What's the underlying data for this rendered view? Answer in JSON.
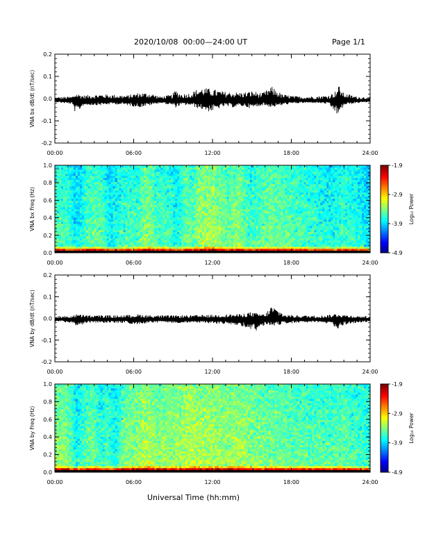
{
  "header": {
    "title": "2020/10/08  00:00—24:00 UT",
    "page": "Page 1/1"
  },
  "x_axis_title": "Universal Time (hh:mm)",
  "chart_data": [
    {
      "type": "line",
      "name": "bx-timeseries",
      "ylabel": "VNA bx dB/dt (nT/sec)",
      "xlim": [
        0,
        24
      ],
      "ylim": [
        -0.2,
        0.2
      ],
      "x_tick_labels": [
        "00:00",
        "06:00",
        "12:00",
        "18:00",
        "24:00"
      ],
      "y_tick_labels": [
        "0.2",
        "0.1",
        "0.0",
        "-0.1",
        "-0.2"
      ],
      "y_ticks": [
        0.2,
        0.1,
        0.0,
        -0.1,
        -0.2
      ],
      "baseline": -0.01,
      "envelope": {
        "hours": [
          0,
          1.3,
          1.6,
          2.2,
          3.5,
          4.5,
          5.5,
          6.4,
          7.3,
          8.0,
          8.9,
          9.2,
          9.6,
          10.3,
          10.9,
          11.3,
          11.8,
          12.3,
          12.9,
          13.5,
          14.3,
          15.0,
          15.8,
          16.5,
          17.3,
          18.2,
          19.0,
          20.0,
          20.8,
          21.3,
          21.6,
          22.0,
          23.0,
          24.0
        ],
        "upper": [
          0.007,
          0.01,
          0.025,
          0.015,
          0.02,
          0.018,
          0.015,
          0.028,
          0.025,
          0.01,
          0.018,
          0.04,
          0.022,
          0.025,
          0.045,
          0.05,
          0.045,
          0.04,
          0.032,
          0.03,
          0.028,
          0.035,
          0.025,
          0.055,
          0.02,
          0.012,
          0.01,
          0.012,
          0.015,
          0.03,
          0.06,
          0.025,
          0.01,
          0.007
        ],
        "lower": [
          -0.015,
          -0.025,
          -0.07,
          -0.03,
          -0.03,
          -0.025,
          -0.03,
          -0.04,
          -0.03,
          -0.02,
          -0.03,
          -0.04,
          -0.03,
          -0.03,
          -0.045,
          -0.05,
          -0.06,
          -0.05,
          -0.035,
          -0.04,
          -0.035,
          -0.045,
          -0.03,
          -0.04,
          -0.03,
          -0.022,
          -0.02,
          -0.02,
          -0.025,
          -0.06,
          -0.08,
          -0.03,
          -0.02,
          -0.015
        ]
      }
    },
    {
      "type": "heatmap",
      "name": "bx-spectrogram",
      "ylabel": "VNA bx Freq (Hz)",
      "xlim": [
        0,
        24
      ],
      "ylim": [
        0,
        1.0
      ],
      "x_tick_labels": [
        "00:00",
        "06:00",
        "12:00",
        "18:00",
        "24:00"
      ],
      "y_tick_labels": [
        "1.0",
        "0.8",
        "0.6",
        "0.4",
        "0.2",
        "0.0"
      ],
      "y_ticks": [
        1.0,
        0.8,
        0.6,
        0.4,
        0.2,
        0.0
      ],
      "colorbar": {
        "label": "Log₁₀ Power",
        "ticks": [
          "-1.9",
          "-2.9",
          "-3.9",
          "-4.9"
        ],
        "range": [
          -4.9,
          -1.9
        ]
      },
      "power_profile": {
        "hours": [
          0,
          1.0,
          1.5,
          2.0,
          2.5,
          3.0,
          3.6,
          4.2,
          5.0,
          5.5,
          6.2,
          7.0,
          7.8,
          8.5,
          9.3,
          10.0,
          10.5,
          11.0,
          12.0,
          12.6,
          13.2,
          14.0,
          14.7,
          15.5,
          16.5,
          17.3,
          18.3,
          19.0,
          20.0,
          21.0,
          22.0,
          23.0,
          24.0
        ],
        "mean_log_power": [
          -3.5,
          -3.55,
          -3.8,
          -3.7,
          -3.5,
          -3.45,
          -3.5,
          -3.75,
          -3.6,
          -3.5,
          -3.6,
          -3.3,
          -3.55,
          -3.5,
          -3.7,
          -3.4,
          -3.5,
          -3.3,
          -3.25,
          -3.35,
          -3.45,
          -3.3,
          -3.55,
          -3.5,
          -3.4,
          -3.45,
          -3.5,
          -3.55,
          -3.6,
          -3.7,
          -3.55,
          -3.65,
          -3.8
        ]
      }
    },
    {
      "type": "line",
      "name": "by-timeseries",
      "ylabel": "VNA by dB/dt (nT/sec)",
      "xlim": [
        0,
        24
      ],
      "ylim": [
        -0.2,
        0.2
      ],
      "x_tick_labels": [
        "00:00",
        "06:00",
        "12:00",
        "18:00",
        "24:00"
      ],
      "y_tick_labels": [
        "0.2",
        "0.1",
        "0.0",
        "-0.1",
        "-0.2"
      ],
      "y_ticks": [
        0.2,
        0.1,
        0.0,
        -0.1,
        -0.2
      ],
      "baseline": -0.005,
      "envelope": {
        "hours": [
          0,
          1.3,
          1.6,
          2.5,
          3.5,
          4.5,
          5.5,
          6.4,
          7.3,
          8.5,
          9.5,
          10.5,
          11.5,
          12.5,
          13.5,
          14.2,
          14.8,
          15.3,
          16.0,
          16.5,
          17.5,
          18.5,
          19.5,
          20.5,
          21.2,
          21.5,
          22.0,
          23.0,
          24.0
        ],
        "upper": [
          0.01,
          0.012,
          0.02,
          0.015,
          0.015,
          0.014,
          0.016,
          0.02,
          0.015,
          0.014,
          0.015,
          0.015,
          0.016,
          0.018,
          0.02,
          0.02,
          0.03,
          0.025,
          0.02,
          0.06,
          0.018,
          0.015,
          0.014,
          0.014,
          0.02,
          0.025,
          0.018,
          0.012,
          0.01
        ],
        "lower": [
          -0.015,
          -0.02,
          -0.04,
          -0.02,
          -0.02,
          -0.022,
          -0.022,
          -0.03,
          -0.02,
          -0.02,
          -0.022,
          -0.02,
          -0.022,
          -0.025,
          -0.03,
          -0.035,
          -0.05,
          -0.06,
          -0.03,
          -0.035,
          -0.025,
          -0.02,
          -0.02,
          -0.022,
          -0.03,
          -0.06,
          -0.03,
          -0.02,
          -0.015
        ]
      }
    },
    {
      "type": "heatmap",
      "name": "by-spectrogram",
      "ylabel": "VNA by Freq (Hz)",
      "xlim": [
        0,
        24
      ],
      "ylim": [
        0,
        1.0
      ],
      "x_tick_labels": [
        "00:00",
        "06:00",
        "12:00",
        "18:00",
        "24:00"
      ],
      "y_tick_labels": [
        "1.0",
        "0.8",
        "0.6",
        "0.4",
        "0.2",
        "0.0"
      ],
      "y_ticks": [
        1.0,
        0.8,
        0.6,
        0.4,
        0.2,
        0.0
      ],
      "colorbar": {
        "label": "Log₁₀ Power",
        "ticks": [
          "-1.9",
          "-2.9",
          "-3.9",
          "-4.9"
        ],
        "range": [
          -4.9,
          -1.9
        ]
      },
      "power_profile": {
        "hours": [
          0,
          1.0,
          1.7,
          2.3,
          3.0,
          3.5,
          4.0,
          4.6,
          5.2,
          6.0,
          7.0,
          7.8,
          8.5,
          9.3,
          10.0,
          11.0,
          12.0,
          13.0,
          14.0,
          15.0,
          16.0,
          17.0,
          18.0,
          19.0,
          20.0,
          21.0,
          22.0,
          23.0,
          24.0
        ],
        "mean_log_power": [
          -3.3,
          -3.4,
          -3.7,
          -3.5,
          -3.4,
          -3.65,
          -3.5,
          -3.7,
          -3.4,
          -3.35,
          -3.2,
          -3.35,
          -3.3,
          -3.3,
          -3.2,
          -3.25,
          -3.25,
          -3.3,
          -3.25,
          -3.35,
          -3.4,
          -3.4,
          -3.45,
          -3.45,
          -3.5,
          -3.5,
          -3.45,
          -3.55,
          -3.6
        ]
      }
    }
  ]
}
